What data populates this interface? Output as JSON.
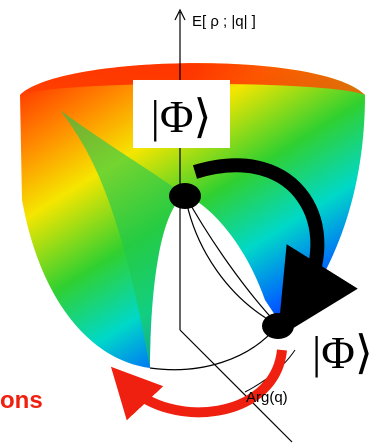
{
  "labels": {
    "axis": "E[ ρ ; |q| ]",
    "state_top": "|Φ⟩",
    "state_right": "|Φ⟩",
    "modes": "ons",
    "angle": "Arg(q)"
  }
}
